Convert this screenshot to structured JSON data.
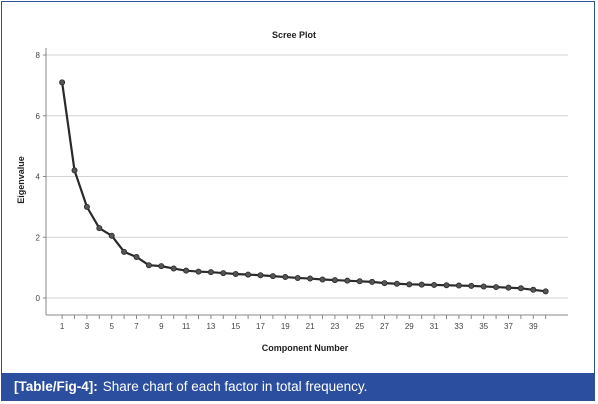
{
  "chart_data": {
    "type": "line",
    "title": "Scree Plot",
    "xlabel": "Component Number",
    "ylabel": "Eigenvalue",
    "x": [
      1,
      2,
      3,
      4,
      5,
      6,
      7,
      8,
      9,
      10,
      11,
      12,
      13,
      14,
      15,
      16,
      17,
      18,
      19,
      20,
      21,
      22,
      23,
      24,
      25,
      26,
      27,
      28,
      29,
      30,
      31,
      32,
      33,
      34,
      35,
      36,
      37,
      38,
      39,
      40
    ],
    "x_tick_labels": [
      "1",
      "3",
      "5",
      "7",
      "9",
      "11",
      "13",
      "15",
      "17",
      "19",
      "21",
      "23",
      "25",
      "27",
      "29",
      "31",
      "33",
      "35",
      "37",
      "39"
    ],
    "y_ticks": [
      0,
      2,
      4,
      6,
      8
    ],
    "ylim": [
      0,
      8
    ],
    "grid": "horizontal",
    "series": [
      {
        "values": [
          7.1,
          4.2,
          3.0,
          2.3,
          2.05,
          1.52,
          1.35,
          1.08,
          1.05,
          0.97,
          0.9,
          0.87,
          0.85,
          0.82,
          0.79,
          0.77,
          0.75,
          0.72,
          0.69,
          0.66,
          0.64,
          0.61,
          0.59,
          0.57,
          0.55,
          0.53,
          0.49,
          0.47,
          0.45,
          0.44,
          0.43,
          0.42,
          0.41,
          0.4,
          0.38,
          0.36,
          0.34,
          0.32,
          0.27,
          0.22
        ]
      }
    ]
  },
  "caption": {
    "label": "[Table/Fig-4]:",
    "text": "Share chart of each factor in total frequency."
  }
}
